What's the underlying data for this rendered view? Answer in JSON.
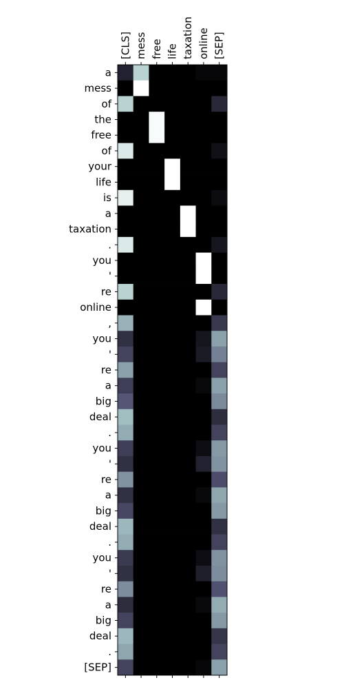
{
  "chart_data": {
    "type": "heatmap",
    "colormap": "bone",
    "value_range": [
      0,
      1
    ],
    "grid": false,
    "x_tick_position": "top",
    "columns": [
      "[CLS]",
      "mess",
      "free",
      "life",
      "taxation",
      "online",
      "[SEP]"
    ],
    "rows": [
      "a",
      "mess",
      "of",
      "the",
      "free",
      "of",
      "your",
      "life",
      "is",
      "a",
      "taxation",
      ".",
      "you",
      "'",
      "re",
      "online",
      ",",
      "you",
      "'",
      "re",
      "a",
      "big",
      "deal",
      ".",
      "you",
      "'",
      "re",
      "a",
      "big",
      "deal",
      ".",
      "you",
      "'",
      "re",
      "a",
      "big",
      "deal",
      ".",
      "[SEP]"
    ],
    "values": [
      [
        0.15,
        0.8,
        0.0,
        0.0,
        0.0,
        0.03,
        0.03
      ],
      [
        0.0,
        1.0,
        0.0,
        0.0,
        0.0,
        0.0,
        0.0
      ],
      [
        0.8,
        0.0,
        0.0,
        0.0,
        0.0,
        0.0,
        0.18
      ],
      [
        0.0,
        0.0,
        0.98,
        0.0,
        0.0,
        0.0,
        0.0
      ],
      [
        0.0,
        0.0,
        0.98,
        0.0,
        0.0,
        0.0,
        0.0
      ],
      [
        0.9,
        0.0,
        0.0,
        0.0,
        0.0,
        0.0,
        0.07
      ],
      [
        0.0,
        0.0,
        0.0,
        1.0,
        0.0,
        0.0,
        0.0
      ],
      [
        0.0,
        0.0,
        0.0,
        1.0,
        0.0,
        0.0,
        0.0
      ],
      [
        0.93,
        0.0,
        0.0,
        0.0,
        0.0,
        0.0,
        0.05
      ],
      [
        0.0,
        0.0,
        0.0,
        0.0,
        1.0,
        0.0,
        0.0
      ],
      [
        0.0,
        0.0,
        0.0,
        0.0,
        1.0,
        0.0,
        0.0
      ],
      [
        0.9,
        0.0,
        0.0,
        0.0,
        0.0,
        0.0,
        0.1
      ],
      [
        0.0,
        0.0,
        0.0,
        0.0,
        0.0,
        1.0,
        0.0
      ],
      [
        0.0,
        0.0,
        0.0,
        0.0,
        0.0,
        1.0,
        0.0
      ],
      [
        0.8,
        0.0,
        0.0,
        0.0,
        0.0,
        0.0,
        0.18
      ],
      [
        0.0,
        0.0,
        0.0,
        0.0,
        0.0,
        1.0,
        0.0
      ],
      [
        0.68,
        0.0,
        0.0,
        0.0,
        0.0,
        0.0,
        0.25
      ],
      [
        0.22,
        0.0,
        0.0,
        0.0,
        0.0,
        0.1,
        0.62
      ],
      [
        0.3,
        0.0,
        0.0,
        0.0,
        0.0,
        0.12,
        0.52
      ],
      [
        0.62,
        0.0,
        0.0,
        0.0,
        0.0,
        0.0,
        0.3
      ],
      [
        0.28,
        0.0,
        0.0,
        0.0,
        0.0,
        0.04,
        0.62
      ],
      [
        0.38,
        0.0,
        0.0,
        0.0,
        0.0,
        0.0,
        0.55
      ],
      [
        0.72,
        0.0,
        0.0,
        0.0,
        0.0,
        0.0,
        0.2
      ],
      [
        0.66,
        0.0,
        0.0,
        0.0,
        0.0,
        0.0,
        0.3
      ],
      [
        0.28,
        0.0,
        0.0,
        0.0,
        0.0,
        0.06,
        0.6
      ],
      [
        0.22,
        0.0,
        0.0,
        0.0,
        0.0,
        0.15,
        0.58
      ],
      [
        0.58,
        0.0,
        0.0,
        0.0,
        0.0,
        0.0,
        0.34
      ],
      [
        0.22,
        0.0,
        0.0,
        0.0,
        0.0,
        0.04,
        0.64
      ],
      [
        0.32,
        0.0,
        0.0,
        0.0,
        0.0,
        0.0,
        0.6
      ],
      [
        0.7,
        0.0,
        0.0,
        0.0,
        0.0,
        0.0,
        0.22
      ],
      [
        0.66,
        0.0,
        0.0,
        0.0,
        0.0,
        0.0,
        0.3
      ],
      [
        0.26,
        0.0,
        0.0,
        0.0,
        0.0,
        0.06,
        0.58
      ],
      [
        0.22,
        0.0,
        0.0,
        0.0,
        0.0,
        0.14,
        0.56
      ],
      [
        0.56,
        0.0,
        0.0,
        0.0,
        0.0,
        0.0,
        0.36
      ],
      [
        0.2,
        0.0,
        0.0,
        0.0,
        0.0,
        0.04,
        0.66
      ],
      [
        0.3,
        0.0,
        0.0,
        0.0,
        0.0,
        0.0,
        0.6
      ],
      [
        0.7,
        0.0,
        0.0,
        0.0,
        0.0,
        0.0,
        0.24
      ],
      [
        0.64,
        0.0,
        0.0,
        0.0,
        0.0,
        0.0,
        0.3
      ],
      [
        0.3,
        0.0,
        0.0,
        0.0,
        0.0,
        0.03,
        0.62
      ]
    ]
  }
}
